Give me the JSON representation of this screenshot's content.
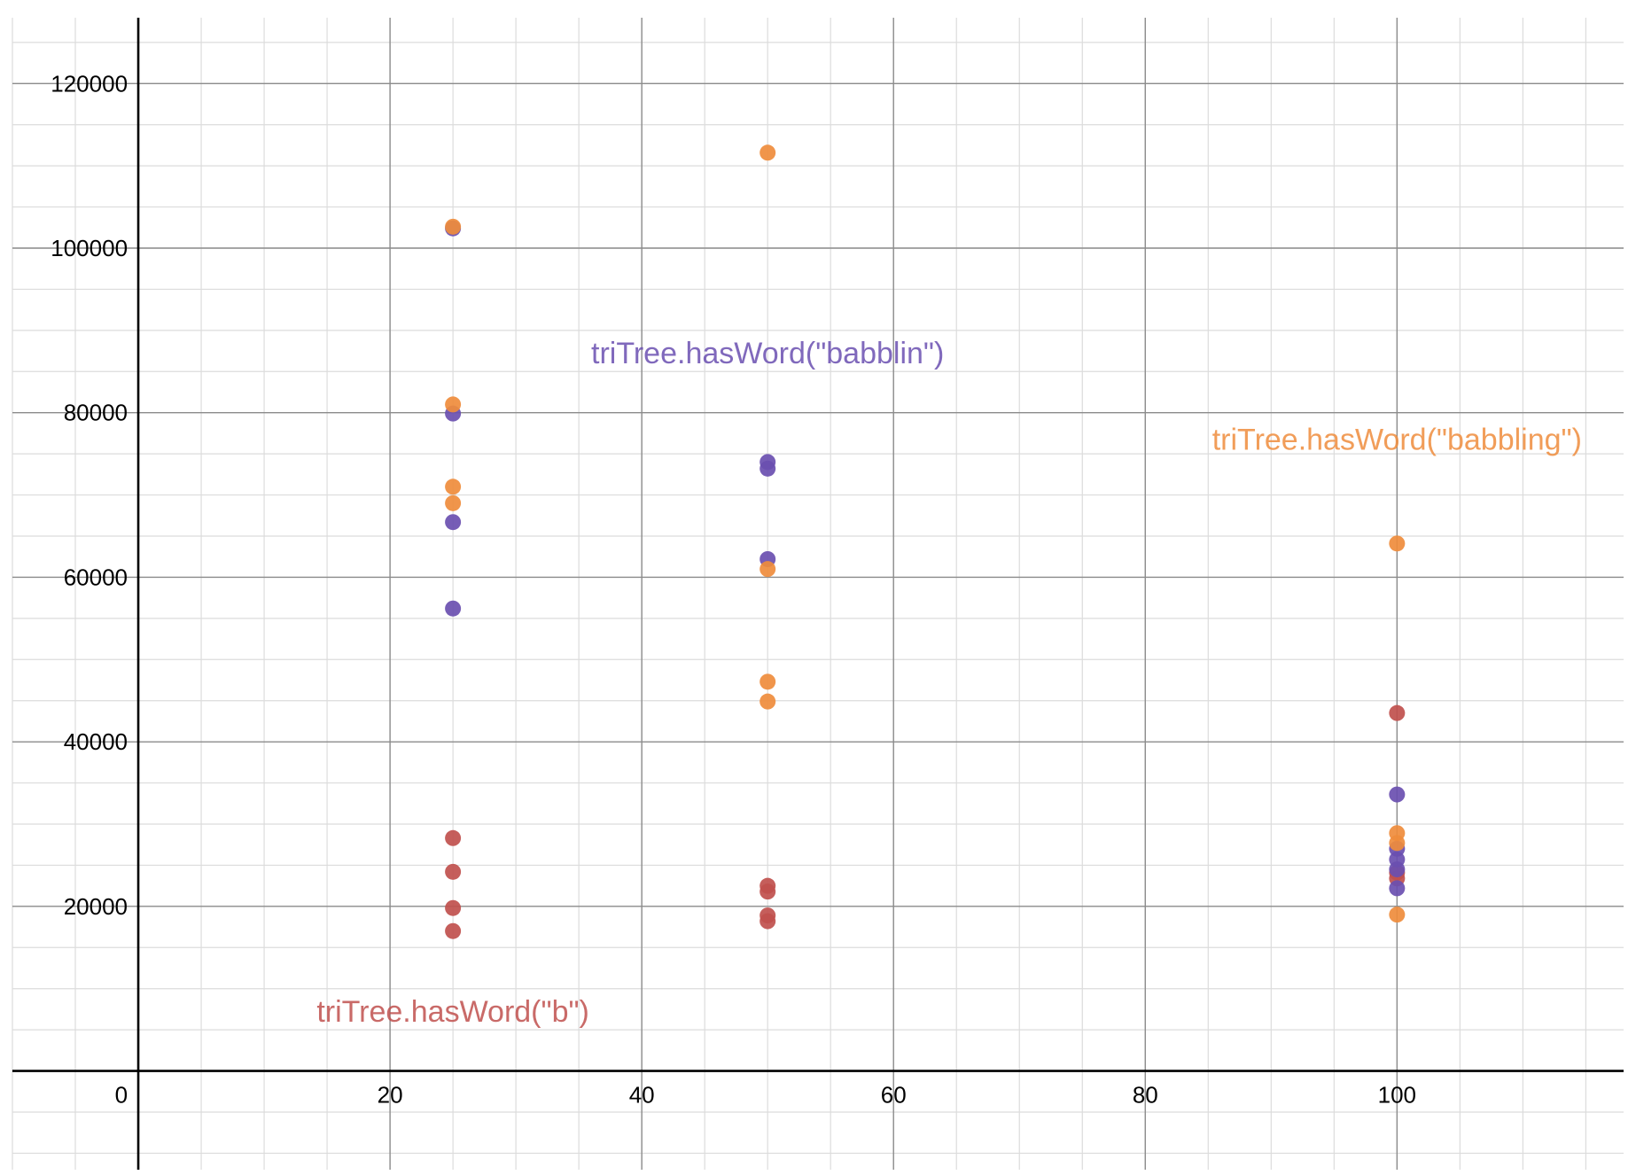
{
  "chart_data": {
    "type": "scatter",
    "title": "",
    "xlabel": "",
    "ylabel": "",
    "xlim": [
      -10,
      118
    ],
    "ylim": [
      -12000,
      128000
    ],
    "x_major_ticks": [
      20,
      40,
      60,
      80,
      100
    ],
    "y_major_ticks": [
      20000,
      40000,
      60000,
      80000,
      100000,
      120000
    ],
    "x_minor_step": 5,
    "y_minor_step": 5000,
    "origin_label": "0",
    "grid": true,
    "series": [
      {
        "name": "triTree.hasWord(\"b\")",
        "color": "#c0504d",
        "label_anchor": [
          25,
          6000
        ],
        "points": [
          [
            25,
            28300
          ],
          [
            25,
            24200
          ],
          [
            25,
            19800
          ],
          [
            25,
            17000
          ],
          [
            50,
            22500
          ],
          [
            50,
            21800
          ],
          [
            50,
            18900
          ],
          [
            50,
            18200
          ],
          [
            100,
            43500
          ],
          [
            100,
            24100
          ],
          [
            100,
            23400
          ]
        ]
      },
      {
        "name": "triTree.hasWord(\"babblin\")",
        "color": "#6a4fb0",
        "label_anchor": [
          50,
          86000
        ],
        "points": [
          [
            25,
            102400
          ],
          [
            25,
            79900
          ],
          [
            25,
            66700
          ],
          [
            25,
            56200
          ],
          [
            50,
            74000
          ],
          [
            50,
            73200
          ],
          [
            50,
            62200
          ],
          [
            100,
            33600
          ],
          [
            100,
            27000
          ],
          [
            100,
            25700
          ],
          [
            100,
            24500
          ],
          [
            100,
            22200
          ]
        ]
      },
      {
        "name": "triTree.hasWord(\"babbling\")",
        "color": "#ef8c3c",
        "label_anchor": [
          100,
          75500
        ],
        "points": [
          [
            25,
            102600
          ],
          [
            25,
            81000
          ],
          [
            25,
            71000
          ],
          [
            25,
            69000
          ],
          [
            50,
            111600
          ],
          [
            50,
            61000
          ],
          [
            50,
            47300
          ],
          [
            50,
            44900
          ],
          [
            100,
            64100
          ],
          [
            100,
            28900
          ],
          [
            100,
            27700
          ],
          [
            100,
            19000
          ]
        ]
      }
    ]
  }
}
